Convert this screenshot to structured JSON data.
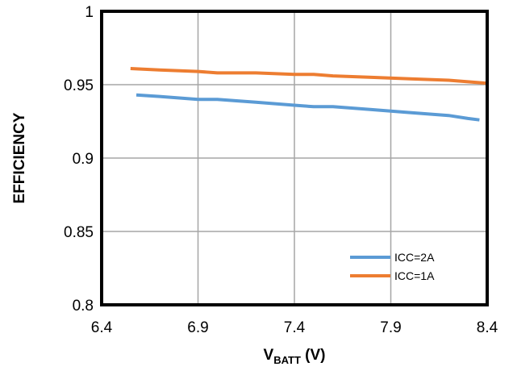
{
  "chart_data": {
    "type": "line",
    "title": "",
    "xlabel_main": "V",
    "xlabel_sub": "BATT",
    "xlabel_unit": " (V)",
    "ylabel": "EFFICIENCY",
    "xlim": [
      6.4,
      8.4
    ],
    "ylim": [
      0.8,
      1.0
    ],
    "x_ticks": [
      "6.4",
      "6.9",
      "7.4",
      "7.9",
      "8.4"
    ],
    "y_ticks": [
      "0.8",
      "0.85",
      "0.9",
      "0.95",
      "1"
    ],
    "grid": true,
    "legend_position": "bottom-right",
    "series": [
      {
        "name": "ICC=2A",
        "color": "#5b9bd5",
        "x": [
          6.58,
          6.7,
          6.9,
          7.0,
          7.2,
          7.4,
          7.5,
          7.6,
          7.8,
          8.0,
          8.2,
          8.3,
          8.36
        ],
        "y": [
          0.943,
          0.942,
          0.94,
          0.94,
          0.938,
          0.936,
          0.935,
          0.935,
          0.933,
          0.931,
          0.929,
          0.927,
          0.926
        ]
      },
      {
        "name": "ICC=1A",
        "color": "#ed7d31",
        "x": [
          6.55,
          6.7,
          6.9,
          7.0,
          7.2,
          7.4,
          7.5,
          7.6,
          7.8,
          8.0,
          8.2,
          8.3,
          8.4
        ],
        "y": [
          0.961,
          0.96,
          0.959,
          0.958,
          0.958,
          0.957,
          0.957,
          0.956,
          0.955,
          0.954,
          0.953,
          0.952,
          0.951
        ]
      }
    ]
  }
}
